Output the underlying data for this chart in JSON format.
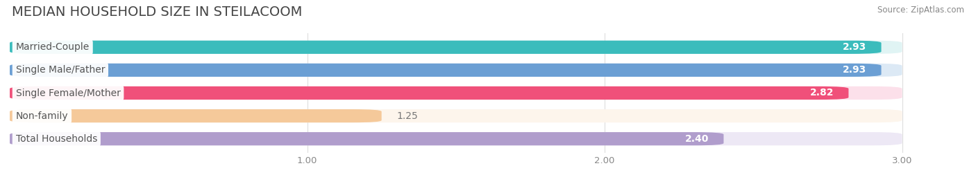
{
  "title": "MEDIAN HOUSEHOLD SIZE IN STEILACOOM",
  "source": "Source: ZipAtlas.com",
  "categories": [
    "Married-Couple",
    "Single Male/Father",
    "Single Female/Mother",
    "Non-family",
    "Total Households"
  ],
  "values": [
    2.93,
    2.93,
    2.82,
    1.25,
    2.4
  ],
  "bar_colors": [
    "#3bbcbc",
    "#6b9fd4",
    "#f0507a",
    "#f5c99a",
    "#b09dcc"
  ],
  "bar_bg_colors": [
    "#e0f4f4",
    "#dce9f5",
    "#fce0ea",
    "#fdf5ec",
    "#ede8f5"
  ],
  "label_text_color": "#555555",
  "xlim": [
    0,
    3.15
  ],
  "xmin": 0,
  "xmax": 3.0,
  "xticks": [
    1.0,
    2.0,
    3.0
  ],
  "value_color": [
    "white",
    "white",
    "white",
    "black",
    "white"
  ],
  "label_fontsize": 10,
  "value_fontsize": 10,
  "title_fontsize": 14,
  "figsize": [
    14.06,
    2.69
  ],
  "dpi": 100,
  "bg_color": "#ffffff"
}
